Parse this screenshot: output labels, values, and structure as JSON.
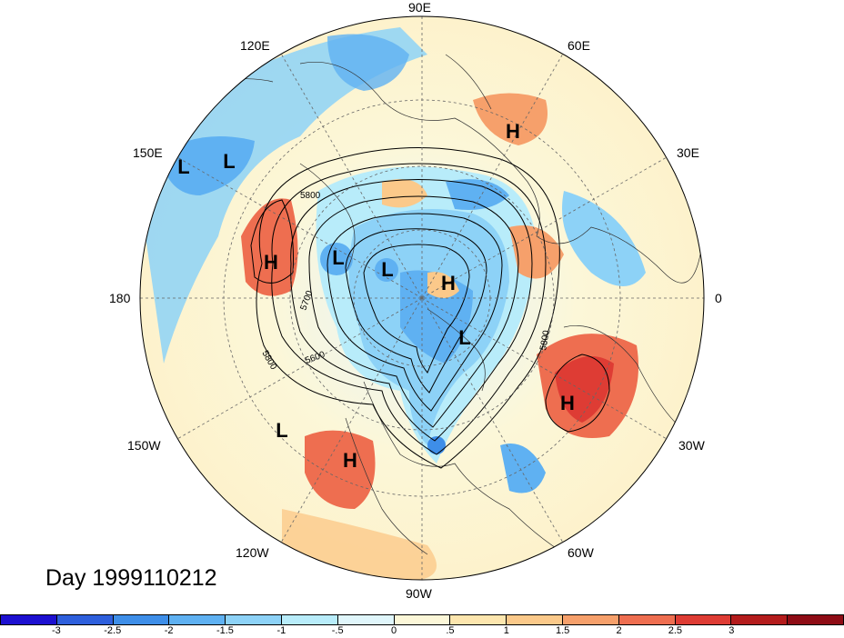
{
  "map": {
    "date_label": "Day 1999110212",
    "lon_labels": {
      "e90": "90E",
      "e120": "120E",
      "e60": "60E",
      "e150": "150E",
      "e30": "30E",
      "d180": "180",
      "d0": "0",
      "w150": "150W",
      "w30": "30W",
      "w120": "120W",
      "w60": "60W",
      "w90": "90W"
    },
    "contour_labels": [
      "5800",
      "5700",
      "5600",
      "5800",
      "5800"
    ],
    "pressure_centers": [
      {
        "type": "H",
        "name": "high-east-siberia"
      },
      {
        "type": "L",
        "name": "low-nw-pacific-1"
      },
      {
        "type": "L",
        "name": "low-nw-pacific-2"
      },
      {
        "type": "H",
        "name": "high-bering"
      },
      {
        "type": "L",
        "name": "low-east-siberia"
      },
      {
        "type": "L",
        "name": "low-arctic"
      },
      {
        "type": "H",
        "name": "high-arctic"
      },
      {
        "type": "L",
        "name": "low-canada-arctic"
      },
      {
        "type": "H",
        "name": "high-north-atlantic"
      },
      {
        "type": "L",
        "name": "low-ne-pacific"
      },
      {
        "type": "H",
        "name": "high-west-us"
      }
    ]
  },
  "colorbar": {
    "colors": [
      "#1d10d0",
      "#2e5fdc",
      "#3e8ee8",
      "#5fb1f2",
      "#8dd2f7",
      "#b8ecfa",
      "#e0f6fb",
      "#fcf7d8",
      "#fde6ae",
      "#fbc98a",
      "#f6a06b",
      "#ee6e50",
      "#de3c34",
      "#b41c1c",
      "#8e0c15"
    ],
    "ticks": [
      "-3",
      "-2.5",
      "-2",
      "-1.5",
      "-1",
      "-.5",
      "0",
      ".5",
      "1",
      "1.5",
      "2",
      "2.5",
      "3"
    ]
  },
  "colors": {
    "ocean_neutral": "#fcf7d8",
    "blue_anomaly": "#8dd2f7",
    "red_anomaly": "#ee6e50"
  }
}
